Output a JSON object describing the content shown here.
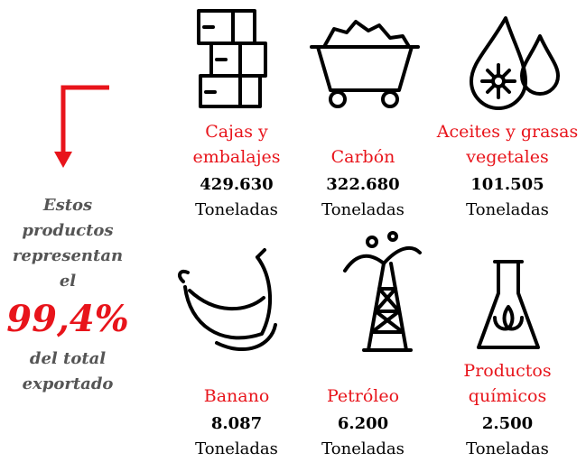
{
  "summary": {
    "lines": [
      "Estos",
      "productos",
      "representan",
      "el"
    ],
    "highlight": "99,4%",
    "tail_lines": [
      "del total",
      "exportado"
    ]
  },
  "products": [
    {
      "label_lines": [
        "Cajas y",
        "embalajes"
      ],
      "value": "429.630",
      "unit": "Toneladas"
    },
    {
      "label_lines": [
        "Carbón"
      ],
      "value": "322.680",
      "unit": "Toneladas"
    },
    {
      "label_lines": [
        "Aceites y grasas",
        "vegetales"
      ],
      "value": "101.505",
      "unit": "Toneladas"
    },
    {
      "label_lines": [
        "Banano"
      ],
      "value": "8.087",
      "unit": "Toneladas"
    },
    {
      "label_lines": [
        "Petróleo"
      ],
      "value": "6.200",
      "unit": "Toneladas"
    },
    {
      "label_lines": [
        "Productos",
        "químicos"
      ],
      "value": "2.500",
      "unit": "Toneladas"
    }
  ]
}
